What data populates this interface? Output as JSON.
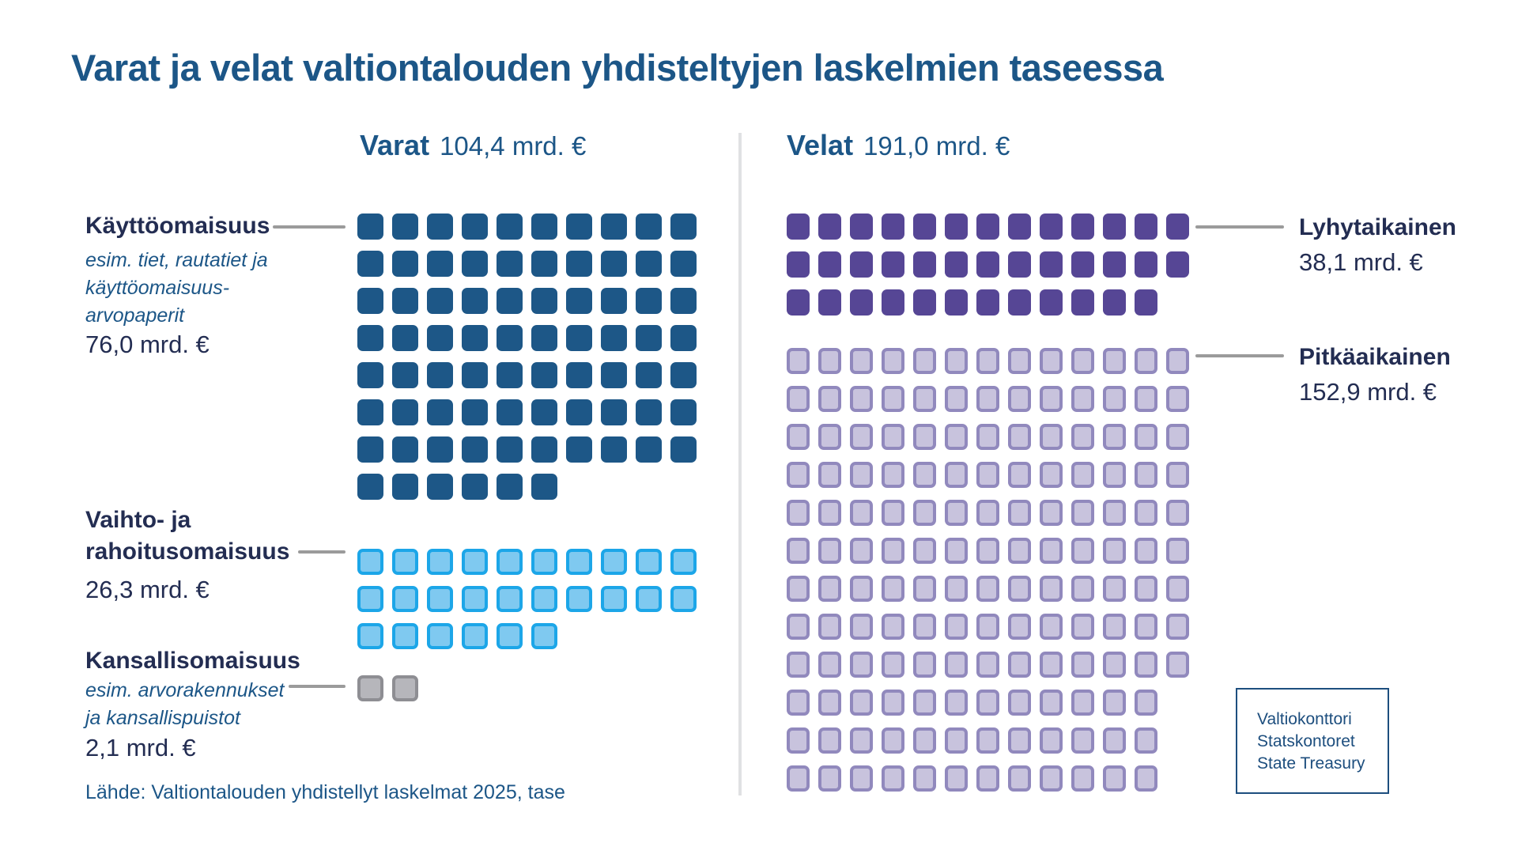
{
  "page": {
    "title": "Varat ja velat valtiontalouden yhdisteltyjen laskelmien taseessa",
    "background": "#ffffff"
  },
  "panels": {
    "varat": {
      "heading": "Varat",
      "total": "104,4 mrd. €"
    },
    "velat": {
      "heading": "Velat",
      "total": "191,0 mrd. €"
    }
  },
  "labels": {
    "kayttoomaisuus": {
      "title": "Käyttöomaisuus",
      "desc_lines": [
        "esim. tiet, rautatiet ja",
        "käyttöomaisuus-",
        "arvopaperit"
      ],
      "value": "76,0 mrd. €"
    },
    "vaihto": {
      "title_lines": [
        "Vaihto- ja",
        "rahoitusomaisuus"
      ],
      "value": "26,3 mrd. €"
    },
    "kansallisomaisuus": {
      "title": "Kansallisomaisuus",
      "desc_lines": [
        "esim. arvorakennukset",
        "ja kansallispuistot"
      ],
      "value": "2,1 mrd. €"
    },
    "lyhytaikainen": {
      "title": "Lyhytaikainen",
      "value": "38,1  mrd. €"
    },
    "pitkaaikainen": {
      "title": "Pitkäaikainen",
      "value": "152,9 mrd. €"
    }
  },
  "waffles": {
    "kayttoomaisuus": {
      "css": "asset-dark",
      "rows": [
        10,
        10,
        10,
        10,
        10,
        10,
        10,
        6
      ]
    },
    "vaihto": {
      "css": "asset-light",
      "rows": [
        10,
        10,
        6
      ]
    },
    "kansallisomaisuus": {
      "css": "asset-gray",
      "rows": [
        2
      ]
    },
    "lyhytaikainen": {
      "css": "debt-dark",
      "rows": [
        13,
        13,
        12
      ]
    },
    "pitkaaikainen": {
      "css": "debt-light",
      "rows": [
        13,
        13,
        13,
        13,
        13,
        13,
        13,
        13,
        13,
        12,
        12,
        12
      ]
    }
  },
  "source": "Lähde: Valtiontalouden yhdistellyt laskelmat 2025, tase",
  "logo": {
    "lines": [
      "Valtiokonttori",
      "Statskontoret",
      "State Treasury"
    ]
  },
  "colors": {
    "steel_blue_text": "#1c5687",
    "navy_text": "#232d52",
    "asset_dark_square": "#1d5787",
    "asset_light_border": "#1ca6e8",
    "asset_light_fill": "#7fc9f0",
    "asset_gray_border": "#8e8e93",
    "asset_gray_fill": "#b6b6bb",
    "debt_dark_square": "#564695",
    "debt_light_border": "#9189bd",
    "debt_light_fill": "#c8c3dd",
    "connector_gray": "#9b9b9b",
    "divider_gray": "#e0e1e3",
    "logo_border": "#1d4e7e"
  },
  "chart_data": {
    "type": "waffle",
    "title": "Varat ja velat valtiontalouden yhdisteltyjen laskelmien taseessa",
    "unit": "mrd. €",
    "value_per_square": 1,
    "groups": [
      {
        "name": "Varat",
        "total": 104.4,
        "total_label": "104,4 mrd. €",
        "categories": [
          {
            "label": "Käyttöomaisuus",
            "description": "esim. tiet, rautatiet ja käyttöomaisuus-arvopaperit",
            "value": 76.0,
            "value_label": "76,0 mrd. €",
            "squares": 76,
            "row_layout": [
              10,
              10,
              10,
              10,
              10,
              10,
              10,
              6
            ],
            "color": "#1d5787"
          },
          {
            "label": "Vaihto- ja rahoitusomaisuus",
            "value": 26.3,
            "value_label": "26,3 mrd. €",
            "squares": 26,
            "row_layout": [
              10,
              10,
              6
            ],
            "color": "#7fc9f0",
            "border_color": "#1ca6e8"
          },
          {
            "label": "Kansallisomaisuus",
            "description": "esim. arvorakennukset ja kansallispuistot",
            "value": 2.1,
            "value_label": "2,1 mrd. €",
            "squares": 2,
            "row_layout": [
              2
            ],
            "color": "#b6b6bb",
            "border_color": "#8e8e93"
          }
        ]
      },
      {
        "name": "Velat",
        "total": 191.0,
        "total_label": "191,0 mrd. €",
        "categories": [
          {
            "label": "Lyhytaikainen",
            "value": 38.1,
            "value_label": "38,1 mrd. €",
            "squares": 38,
            "row_layout": [
              13,
              13,
              12
            ],
            "color": "#564695"
          },
          {
            "label": "Pitkäaikainen",
            "value": 152.9,
            "value_label": "152,9 mrd. €",
            "squares": 153,
            "row_layout": [
              13,
              13,
              13,
              13,
              13,
              13,
              13,
              13,
              13,
              12,
              12,
              12
            ],
            "color": "#c8c3dd",
            "border_color": "#9189bd"
          }
        ]
      }
    ],
    "source": "Lähde: Valtiontalouden yhdistellyt laskelmat 2025, tase",
    "legend_position": "side-labels",
    "grid": false
  }
}
